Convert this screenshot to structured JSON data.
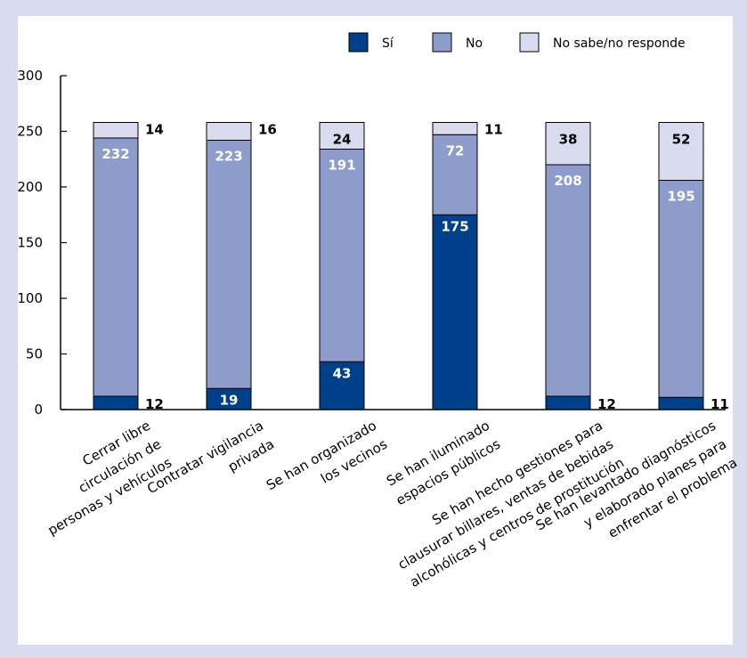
{
  "chart_data": {
    "type": "bar",
    "stacked": true,
    "categories": [
      [
        "Cerrar libre",
        "circulación de",
        "personas y vehículos"
      ],
      [
        "Contratar vigilancia",
        "privada"
      ],
      [
        "Se han organizado",
        "los vecinos"
      ],
      [
        "Se han iluminado",
        "espacios públicos"
      ],
      [
        "Se han hecho gestiones para",
        "clausurar billares, ventas de bebidas",
        "alcohólicas y centros de prostitución"
      ],
      [
        "Se han levantado diagnósticos",
        "y elaborado planes para",
        "enfrentar el problema"
      ]
    ],
    "series": [
      {
        "name": "Sí",
        "color": "#00408a",
        "values": [
          12,
          19,
          43,
          175,
          12,
          11
        ]
      },
      {
        "name": "No",
        "color": "#8d9ccb",
        "values": [
          232,
          223,
          191,
          72,
          208,
          195
        ]
      },
      {
        "name": "No sabe/no responde",
        "color": "#d9dcee",
        "values": [
          14,
          16,
          24,
          11,
          38,
          52
        ]
      }
    ],
    "ylim": [
      0,
      300
    ],
    "yticks": [
      0,
      50,
      100,
      150,
      200,
      250,
      300
    ],
    "xlabel": "",
    "ylabel": "",
    "legend_position": "top-right",
    "grid": false
  }
}
